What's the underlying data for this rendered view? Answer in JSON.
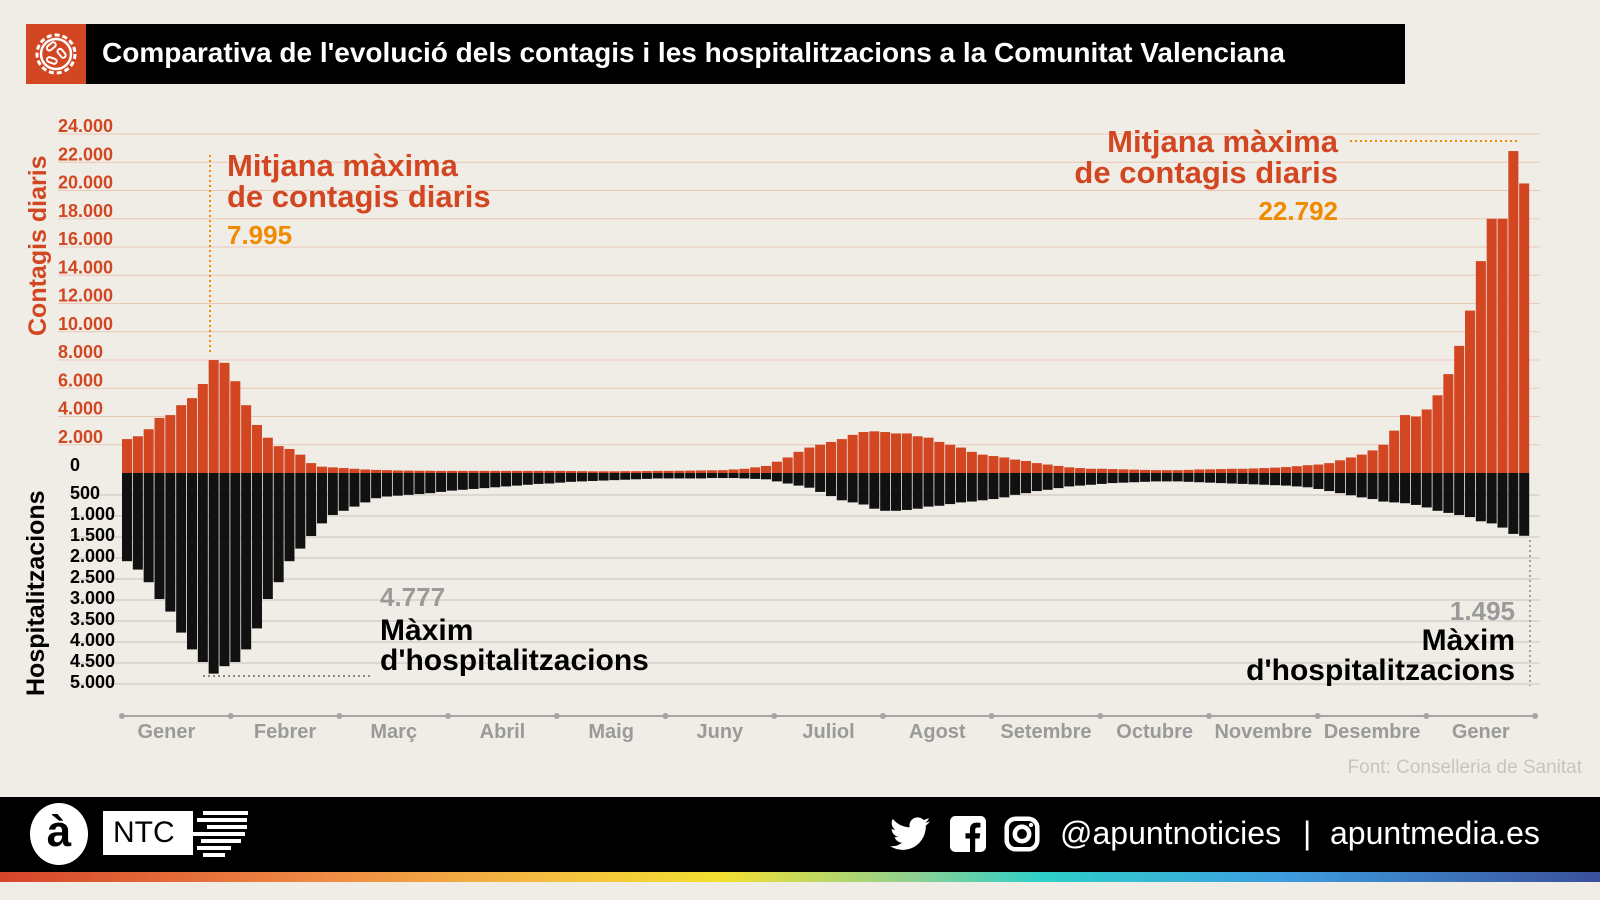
{
  "title": "Comparativa de l'evolució dels contagis i les hospitalitzacions a la Comunitat Valenciana",
  "source": "Font: Conselleria de Sanitat",
  "footer": {
    "logo_letter": "à",
    "logo_ntc": "NTC",
    "social_handle": "@apuntnoticies",
    "separator": "|",
    "website": "apuntmedia.es",
    "icons": [
      "twitter-icon",
      "facebook-icon",
      "instagram-icon"
    ]
  },
  "colors": {
    "contagis": "#d24622",
    "hospital": "#111111",
    "highlight": "#f08a00",
    "muted": "#9a9a9a"
  },
  "annotations": {
    "left_contagis": {
      "line1": "Mitjana màxima",
      "line2": "de contagis diaris",
      "value": "7.995"
    },
    "right_contagis": {
      "line1": "Mitjana màxima",
      "line2": "de contagis diaris",
      "value": "22.792"
    },
    "left_hosp": {
      "value": "4.777",
      "line1": "Màxim",
      "line2": "d'hospitalitzacions"
    },
    "right_hosp": {
      "value": "1.495",
      "line1": "Màxim",
      "line2": "d'hospitalitzacions"
    }
  },
  "chart_data": {
    "type": "bar",
    "ylabel_top": "Contagis diaris",
    "ylabel_bottom": "Hospitalitzacions",
    "ylim_top": [
      0,
      24000
    ],
    "ylim_bottom": [
      0,
      5000
    ],
    "yticks_top": [
      "0",
      "2.000",
      "4.000",
      "6.000",
      "8.000",
      "10.000",
      "12.000",
      "14.000",
      "16.000",
      "18.000",
      "20.000",
      "22.000",
      "24.000"
    ],
    "yticks_bottom": [
      "500",
      "1.000",
      "1.500",
      "2.000",
      "2.500",
      "3.000",
      "3.500",
      "4.000",
      "4.500",
      "5.000"
    ],
    "months": [
      "Gener",
      "Febrer",
      "Març",
      "Abril",
      "Maig",
      "Juny",
      "Juliol",
      "Agost",
      "Setembre",
      "Octubre",
      "Novembre",
      "Desembre",
      "Gener"
    ],
    "grid": true,
    "series": [
      {
        "name": "Contagis diaris",
        "values": [
          2400,
          2600,
          3100,
          3900,
          4100,
          4800,
          5300,
          6300,
          7995,
          7800,
          6500,
          4800,
          3400,
          2500,
          1900,
          1700,
          1300,
          700,
          450,
          400,
          350,
          300,
          250,
          220,
          200,
          180,
          170,
          160,
          160,
          150,
          150,
          150,
          150,
          150,
          150,
          150,
          150,
          150,
          150,
          150,
          150,
          140,
          130,
          120,
          120,
          120,
          130,
          130,
          140,
          150,
          150,
          160,
          170,
          180,
          190,
          200,
          250,
          300,
          400,
          500,
          800,
          1100,
          1500,
          1800,
          2000,
          2200,
          2400,
          2700,
          2900,
          2950,
          2900,
          2800,
          2800,
          2600,
          2500,
          2200,
          2000,
          1800,
          1500,
          1300,
          1200,
          1100,
          950,
          850,
          700,
          600,
          500,
          400,
          350,
          300,
          300,
          280,
          260,
          240,
          220,
          200,
          200,
          200,
          220,
          250,
          260,
          280,
          300,
          300,
          320,
          350,
          380,
          420,
          480,
          550,
          600,
          700,
          900,
          1100,
          1300,
          1600,
          2000,
          3000,
          4100,
          4000,
          4500,
          5500,
          7000,
          9000,
          11500,
          15000,
          18000,
          18000,
          22792,
          20500
        ]
      },
      {
        "name": "Hospitalitzacions",
        "values": [
          2100,
          2300,
          2600,
          3000,
          3300,
          3800,
          4200,
          4500,
          4777,
          4600,
          4500,
          4200,
          3700,
          3000,
          2600,
          2100,
          1800,
          1500,
          1200,
          1000,
          900,
          800,
          700,
          600,
          560,
          540,
          520,
          500,
          480,
          450,
          420,
          400,
          380,
          360,
          340,
          320,
          300,
          280,
          260,
          250,
          230,
          210,
          200,
          190,
          180,
          170,
          160,
          150,
          140,
          130,
          130,
          130,
          130,
          130,
          120,
          120,
          120,
          130,
          140,
          150,
          200,
          250,
          300,
          350,
          450,
          550,
          650,
          700,
          750,
          850,
          900,
          900,
          880,
          850,
          800,
          780,
          740,
          700,
          680,
          650,
          620,
          580,
          520,
          480,
          430,
          400,
          360,
          320,
          300,
          280,
          260,
          240,
          230,
          220,
          210,
          200,
          200,
          200,
          210,
          220,
          230,
          240,
          250,
          260,
          270,
          280,
          290,
          300,
          320,
          340,
          380,
          430,
          480,
          530,
          580,
          620,
          680,
          700,
          720,
          760,
          820,
          900,
          950,
          1000,
          1050,
          1150,
          1200,
          1300,
          1450,
          1495
        ]
      }
    ]
  }
}
